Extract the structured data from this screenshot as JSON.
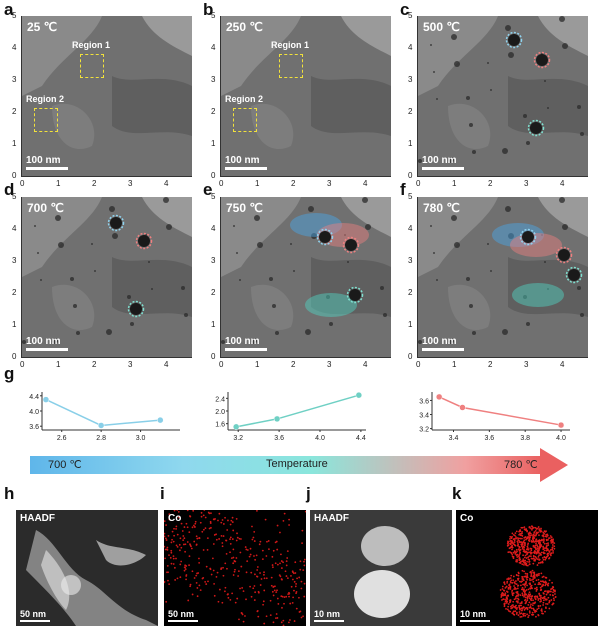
{
  "panel_labels": [
    "a",
    "b",
    "c",
    "d",
    "e",
    "f",
    "g",
    "h",
    "i",
    "j",
    "k"
  ],
  "micrographs": [
    {
      "id": "a",
      "temperature": "25 ℃",
      "scale": "100 nm",
      "regions": [
        "Region 1",
        "Region 2"
      ]
    },
    {
      "id": "b",
      "temperature": "250 ℃",
      "scale": "100 nm",
      "regions": [
        "Region 1",
        "Region 2"
      ]
    },
    {
      "id": "c",
      "temperature": "500 ℃",
      "scale": "100 nm",
      "regions": []
    },
    {
      "id": "d",
      "temperature": "700 ℃",
      "scale": "100 nm",
      "regions": []
    },
    {
      "id": "e",
      "temperature": "750 ℃",
      "scale": "100 nm",
      "regions": []
    },
    {
      "id": "f",
      "temperature": "780 ℃",
      "scale": "100 nm",
      "regions": []
    }
  ],
  "micro_axis": {
    "x_ticks": [
      "0",
      "1",
      "2",
      "3",
      "4"
    ],
    "y_ticks": [
      "0",
      "1",
      "2",
      "3",
      "4",
      "5"
    ]
  },
  "chart_data": [
    {
      "type": "line",
      "color": "#89cfe8",
      "x": [
        2.52,
        2.8,
        3.1
      ],
      "y": [
        4.3,
        3.62,
        3.76
      ],
      "x_ticks": [
        "2.6",
        "2.8",
        "3.0"
      ],
      "y_ticks": [
        "3.6",
        "4.0",
        "4.4"
      ],
      "xlim": [
        2.5,
        3.2
      ],
      "ylim": [
        3.5,
        4.5
      ],
      "xlabel": "",
      "ylabel": ""
    },
    {
      "type": "line",
      "color": "#6fd0c4",
      "x": [
        3.18,
        3.58,
        4.38
      ],
      "y": [
        1.5,
        1.75,
        2.5
      ],
      "x_ticks": [
        "3.2",
        "3.6",
        "4.0",
        "4.4"
      ],
      "y_ticks": [
        "1.6",
        "2.0",
        "2.4"
      ],
      "xlim": [
        3.1,
        4.45
      ],
      "ylim": [
        1.4,
        2.6
      ],
      "xlabel": "",
      "ylabel": ""
    },
    {
      "type": "line",
      "color": "#ef8080",
      "x": [
        3.32,
        3.45,
        4.0
      ],
      "y": [
        3.65,
        3.5,
        3.25
      ],
      "x_ticks": [
        "3.4",
        "3.6",
        "3.8",
        "4.0"
      ],
      "y_ticks": [
        "3.2",
        "3.4",
        "3.6"
      ],
      "xlim": [
        3.28,
        4.05
      ],
      "ylim": [
        3.18,
        3.72
      ],
      "xlabel": "",
      "ylabel": ""
    }
  ],
  "gradient": {
    "start_label": "700 ℃",
    "mid_label": "Temperature",
    "end_label": "780 ℃"
  },
  "eds_panels": [
    {
      "id": "h",
      "title": "HAADF",
      "scale": "50 nm"
    },
    {
      "id": "i",
      "title": "Co",
      "scale": "50 nm"
    },
    {
      "id": "j",
      "title": "HAADF",
      "scale": "10 nm"
    },
    {
      "id": "k",
      "title": "Co",
      "scale": "10 nm"
    }
  ]
}
